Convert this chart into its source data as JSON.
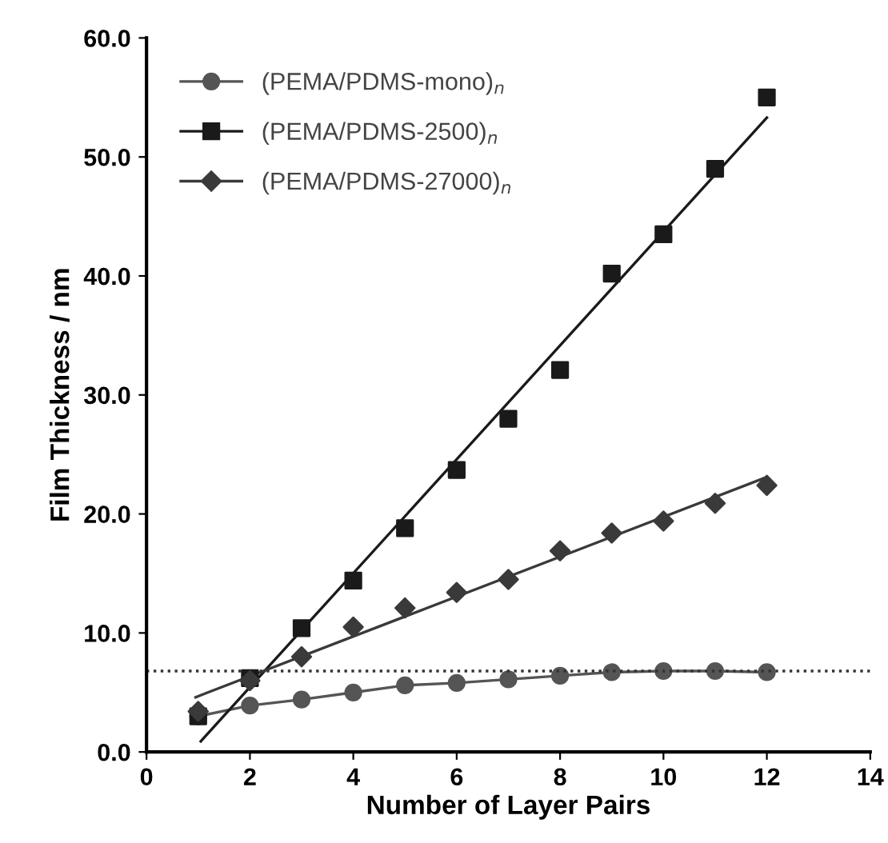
{
  "chart_data": {
    "type": "scatter",
    "xlabel": "Number of Layer Pairs",
    "ylabel": "Film Thickness / nm",
    "x": [
      1,
      2,
      3,
      4,
      5,
      6,
      7,
      8,
      9,
      10,
      11,
      12
    ],
    "xlim": [
      0,
      14
    ],
    "xticks": [
      0,
      2,
      4,
      6,
      8,
      10,
      12,
      14
    ],
    "ylim": [
      0,
      60
    ],
    "yticks": [
      {
        "value": 0,
        "label": "0.0"
      },
      {
        "value": 10,
        "label": "10.0"
      },
      {
        "value": 20,
        "label": "20.0"
      },
      {
        "value": 30,
        "label": "30.0"
      },
      {
        "value": 40,
        "label": "40.0"
      },
      {
        "value": 50,
        "label": "50.0"
      },
      {
        "value": 60,
        "label": "60.0"
      }
    ],
    "series": [
      {
        "name": "(PEMA/PDMS-mono)$_{n}$",
        "type": "line",
        "marker": "circle",
        "color": "#555555",
        "values": [
          3.0,
          3.9,
          4.4,
          5.0,
          5.6,
          5.8,
          6.1,
          6.4,
          6.7,
          6.8,
          6.8,
          6.7
        ]
      },
      {
        "name": "(PEMA/PDMS-2500)$_{n}$",
        "marker": "square",
        "color": "#1a1a1a",
        "values": [
          3.0,
          6.2,
          10.4,
          14.4,
          18.8,
          23.7,
          28.0,
          32.1,
          40.2,
          43.5,
          49.0,
          55.0
        ]
      },
      {
        "name": "(PEMA/PDMS-27000)$_{n}$",
        "marker": "diamond",
        "color": "#3a3a3a",
        "values": [
          3.4,
          6.0,
          8.0,
          10.5,
          12.1,
          13.4,
          14.5,
          16.9,
          18.4,
          19.4,
          20.9,
          22.4
        ]
      },
      {
        "type": "line",
        "marker": "none",
        "color": "#1a1a1a",
        "x": [
          1.05,
          12
        ],
        "values": [
          0.9,
          53.3
        ]
      },
      {
        "type": "line",
        "marker": "none",
        "color": "#3a3a3a",
        "x": [
          0.95,
          12
        ],
        "values": [
          4.6,
          23.1
        ]
      }
    ],
    "ref_lines": [
      {
        "axis": "y",
        "value": 6.8,
        "color": "#333333",
        "line_style": "dotted"
      }
    ],
    "legend": "top left",
    "grid": false
  }
}
